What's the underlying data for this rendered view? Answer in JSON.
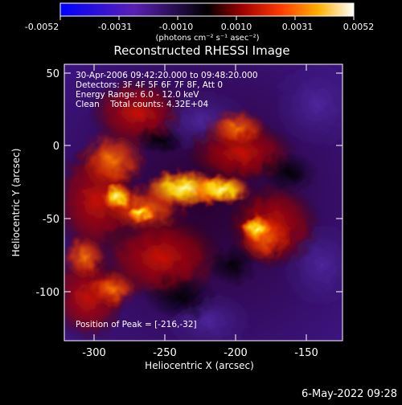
{
  "colorbar": {
    "tick_labels": [
      "-0.0052",
      "-0.0031",
      "-0.0010",
      "0.0010",
      "0.0031",
      "0.0052"
    ],
    "units_label": "(photons cm⁻² s⁻¹ asec⁻²)",
    "colors": [
      "#0000ff",
      "#5a20b5",
      "#000000",
      "#a00000",
      "#ff3a00",
      "#ffb000",
      "#ffffff"
    ]
  },
  "plot": {
    "title": "Reconstructed RHESSI Image",
    "xlabel": "Heliocentric X (arcsec)",
    "ylabel": "Heliocentric Y (arcsec)",
    "x_ticks": [
      "-300",
      "-250",
      "-200",
      "-150"
    ],
    "y_ticks": [
      "50",
      "0",
      "-50",
      "-100"
    ],
    "annotations": {
      "time_range": "30-Apr-2006 09:42:20.000 to 09:48:20.000",
      "detectors": "Detectors: 3F 4F 5F 6F 7F 8F, Att 0",
      "energy": "Energy Range: 6.0 - 12.0 keV",
      "method": "Clean    Total counts: 4.32E+04",
      "peak": "Position of Peak = [-216,-32]"
    }
  },
  "footer": {
    "timestamp": "6-May-2022 09:28"
  }
}
